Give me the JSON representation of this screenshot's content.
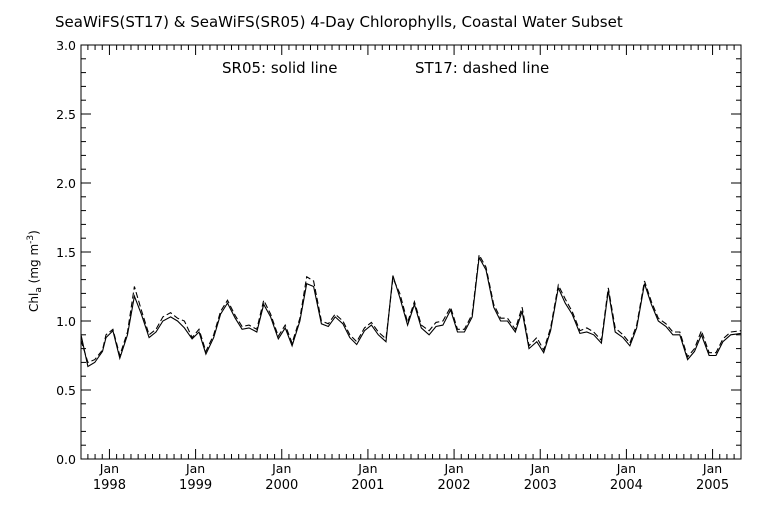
{
  "chart_data": {
    "type": "line",
    "title": "SeaWiFS(ST17) & SeaWiFS(SR05) 4-Day Chlorophylls, Coastal Water Subset",
    "note": {
      "solid": "SR05: solid line",
      "dashed": "ST17: dashed line"
    },
    "ylabel": {
      "main": "Chl",
      "sub": "a",
      "units_open": " (mg m",
      "units_sup": "-3",
      "units_close": ")"
    },
    "ylim": [
      0.0,
      3.0
    ],
    "yticks": [
      "0.0",
      "0.5",
      "1.0",
      "1.5",
      "2.0",
      "2.5",
      "3.0"
    ],
    "xlim": [
      1997.67,
      2005.33
    ],
    "xticks": [
      {
        "month": "Jan",
        "year": "1998"
      },
      {
        "month": "Jan",
        "year": "1999"
      },
      {
        "month": "Jan",
        "year": "2000"
      },
      {
        "month": "Jan",
        "year": "2001"
      },
      {
        "month": "Jan",
        "year": "2002"
      },
      {
        "month": "Jan",
        "year": "2003"
      },
      {
        "month": "Jan",
        "year": "2004"
      },
      {
        "month": "Jan",
        "year": "2005"
      }
    ],
    "grid": false,
    "series": [
      {
        "name": "SR05",
        "style": "solid",
        "points": [
          [
            1997.67,
            0.9
          ],
          [
            1997.75,
            0.67
          ],
          [
            1997.83,
            0.7
          ],
          [
            1997.92,
            0.78
          ],
          [
            1997.96,
            0.88
          ],
          [
            1998.04,
            0.93
          ],
          [
            1998.12,
            0.73
          ],
          [
            1998.21,
            0.9
          ],
          [
            1998.29,
            1.18
          ],
          [
            1998.37,
            1.05
          ],
          [
            1998.46,
            0.88
          ],
          [
            1998.54,
            0.92
          ],
          [
            1998.62,
            1.0
          ],
          [
            1998.71,
            1.03
          ],
          [
            1998.79,
            1.0
          ],
          [
            1998.87,
            0.95
          ],
          [
            1998.96,
            0.87
          ],
          [
            1999.04,
            0.92
          ],
          [
            1999.12,
            0.76
          ],
          [
            1999.21,
            0.88
          ],
          [
            1999.29,
            1.05
          ],
          [
            1999.37,
            1.13
          ],
          [
            1999.46,
            1.02
          ],
          [
            1999.54,
            0.94
          ],
          [
            1999.62,
            0.95
          ],
          [
            1999.71,
            0.92
          ],
          [
            1999.79,
            1.12
          ],
          [
            1999.87,
            1.03
          ],
          [
            1999.96,
            0.87
          ],
          [
            2000.04,
            0.95
          ],
          [
            2000.12,
            0.82
          ],
          [
            2000.21,
            1.0
          ],
          [
            2000.29,
            1.27
          ],
          [
            2000.37,
            1.25
          ],
          [
            2000.46,
            0.98
          ],
          [
            2000.54,
            0.96
          ],
          [
            2000.62,
            1.03
          ],
          [
            2000.71,
            0.98
          ],
          [
            2000.79,
            0.88
          ],
          [
            2000.87,
            0.83
          ],
          [
            2000.96,
            0.93
          ],
          [
            2001.04,
            0.97
          ],
          [
            2001.12,
            0.9
          ],
          [
            2001.21,
            0.85
          ],
          [
            2001.29,
            1.33
          ],
          [
            2001.37,
            1.17
          ],
          [
            2001.46,
            0.97
          ],
          [
            2001.54,
            1.12
          ],
          [
            2001.62,
            0.95
          ],
          [
            2001.71,
            0.9
          ],
          [
            2001.79,
            0.96
          ],
          [
            2001.87,
            0.97
          ],
          [
            2001.96,
            1.08
          ],
          [
            2002.04,
            0.92
          ],
          [
            2002.12,
            0.92
          ],
          [
            2002.21,
            1.03
          ],
          [
            2002.29,
            1.46
          ],
          [
            2002.37,
            1.37
          ],
          [
            2002.46,
            1.1
          ],
          [
            2002.54,
            1.0
          ],
          [
            2002.62,
            1.0
          ],
          [
            2002.71,
            0.92
          ],
          [
            2002.79,
            1.07
          ],
          [
            2002.87,
            0.8
          ],
          [
            2002.96,
            0.85
          ],
          [
            2003.04,
            0.77
          ],
          [
            2003.12,
            0.93
          ],
          [
            2003.21,
            1.24
          ],
          [
            2003.29,
            1.13
          ],
          [
            2003.37,
            1.05
          ],
          [
            2003.46,
            0.91
          ],
          [
            2003.54,
            0.92
          ],
          [
            2003.62,
            0.9
          ],
          [
            2003.71,
            0.84
          ],
          [
            2003.79,
            1.22
          ],
          [
            2003.87,
            0.92
          ],
          [
            2003.96,
            0.88
          ],
          [
            2004.04,
            0.82
          ],
          [
            2004.12,
            0.95
          ],
          [
            2004.21,
            1.27
          ],
          [
            2004.29,
            1.12
          ],
          [
            2004.37,
            1.0
          ],
          [
            2004.46,
            0.96
          ],
          [
            2004.54,
            0.9
          ],
          [
            2004.62,
            0.9
          ],
          [
            2004.71,
            0.72
          ],
          [
            2004.79,
            0.78
          ],
          [
            2004.87,
            0.9
          ],
          [
            2004.96,
            0.75
          ],
          [
            2005.04,
            0.75
          ],
          [
            2005.12,
            0.85
          ],
          [
            2005.21,
            0.9
          ],
          [
            2005.33,
            0.91
          ]
        ]
      },
      {
        "name": "ST17",
        "style": "dashed",
        "points": [
          [
            1997.67,
            0.86
          ],
          [
            1997.75,
            0.7
          ],
          [
            1997.83,
            0.72
          ],
          [
            1997.92,
            0.79
          ],
          [
            1997.96,
            0.9
          ],
          [
            1998.04,
            0.94
          ],
          [
            1998.12,
            0.75
          ],
          [
            1998.21,
            0.92
          ],
          [
            1998.29,
            1.25
          ],
          [
            1998.37,
            1.08
          ],
          [
            1998.46,
            0.9
          ],
          [
            1998.54,
            0.94
          ],
          [
            1998.62,
            1.03
          ],
          [
            1998.71,
            1.06
          ],
          [
            1998.79,
            1.02
          ],
          [
            1998.87,
            1.0
          ],
          [
            1998.96,
            0.88
          ],
          [
            1999.04,
            0.94
          ],
          [
            1999.12,
            0.78
          ],
          [
            1999.21,
            0.9
          ],
          [
            1999.29,
            1.07
          ],
          [
            1999.37,
            1.15
          ],
          [
            1999.46,
            1.04
          ],
          [
            1999.54,
            0.96
          ],
          [
            1999.62,
            0.97
          ],
          [
            1999.71,
            0.94
          ],
          [
            1999.79,
            1.15
          ],
          [
            1999.87,
            1.05
          ],
          [
            1999.96,
            0.89
          ],
          [
            2000.04,
            0.97
          ],
          [
            2000.12,
            0.84
          ],
          [
            2000.21,
            1.02
          ],
          [
            2000.29,
            1.32
          ],
          [
            2000.37,
            1.29
          ],
          [
            2000.46,
            1.0
          ],
          [
            2000.54,
            0.98
          ],
          [
            2000.62,
            1.05
          ],
          [
            2000.71,
            1.0
          ],
          [
            2000.79,
            0.9
          ],
          [
            2000.87,
            0.85
          ],
          [
            2000.96,
            0.95
          ],
          [
            2001.04,
            0.99
          ],
          [
            2001.12,
            0.92
          ],
          [
            2001.21,
            0.87
          ],
          [
            2001.29,
            1.31
          ],
          [
            2001.37,
            1.2
          ],
          [
            2001.46,
            0.99
          ],
          [
            2001.54,
            1.14
          ],
          [
            2001.62,
            0.97
          ],
          [
            2001.71,
            0.93
          ],
          [
            2001.79,
            0.99
          ],
          [
            2001.87,
            1.0
          ],
          [
            2001.96,
            1.1
          ],
          [
            2002.04,
            0.94
          ],
          [
            2002.12,
            0.94
          ],
          [
            2002.21,
            1.05
          ],
          [
            2002.29,
            1.48
          ],
          [
            2002.37,
            1.39
          ],
          [
            2002.46,
            1.12
          ],
          [
            2002.54,
            1.02
          ],
          [
            2002.62,
            1.02
          ],
          [
            2002.71,
            0.94
          ],
          [
            2002.79,
            1.1
          ],
          [
            2002.87,
            0.82
          ],
          [
            2002.96,
            0.88
          ],
          [
            2003.04,
            0.79
          ],
          [
            2003.12,
            0.95
          ],
          [
            2003.21,
            1.26
          ],
          [
            2003.29,
            1.16
          ],
          [
            2003.37,
            1.07
          ],
          [
            2003.46,
            0.93
          ],
          [
            2003.54,
            0.95
          ],
          [
            2003.62,
            0.92
          ],
          [
            2003.71,
            0.86
          ],
          [
            2003.79,
            1.24
          ],
          [
            2003.87,
            0.95
          ],
          [
            2003.96,
            0.9
          ],
          [
            2004.04,
            0.84
          ],
          [
            2004.12,
            0.97
          ],
          [
            2004.21,
            1.29
          ],
          [
            2004.29,
            1.14
          ],
          [
            2004.37,
            1.02
          ],
          [
            2004.46,
            0.98
          ],
          [
            2004.54,
            0.92
          ],
          [
            2004.62,
            0.92
          ],
          [
            2004.71,
            0.74
          ],
          [
            2004.79,
            0.8
          ],
          [
            2004.87,
            0.93
          ],
          [
            2004.96,
            0.77
          ],
          [
            2005.04,
            0.77
          ],
          [
            2005.12,
            0.87
          ],
          [
            2005.21,
            0.92
          ],
          [
            2005.33,
            0.93
          ]
        ]
      }
    ]
  }
}
